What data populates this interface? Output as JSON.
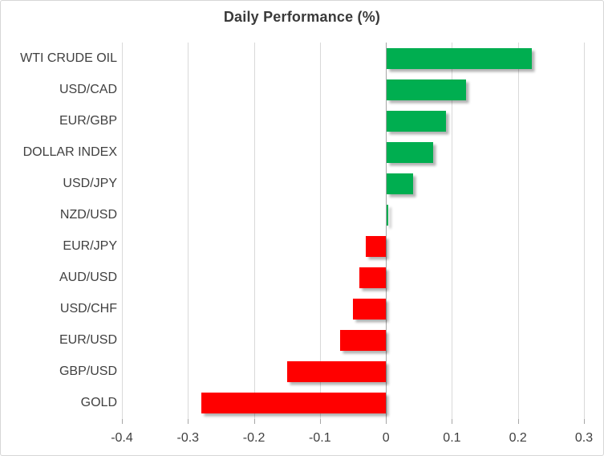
{
  "chart_data": {
    "type": "bar",
    "orientation": "horizontal",
    "title": "Daily Performance (%)",
    "categories": [
      "WTI CRUDE OIL",
      "USD/CAD",
      "EUR/GBP",
      "DOLLAR INDEX",
      "USD/JPY",
      "NZD/USD",
      "EUR/JPY",
      "AUD/USD",
      "USD/CHF",
      "EUR/USD",
      "GBP/USD",
      "GOLD"
    ],
    "values": [
      0.22,
      0.12,
      0.09,
      0.07,
      0.04,
      0.002,
      -0.03,
      -0.04,
      -0.05,
      -0.07,
      -0.15,
      -0.28
    ],
    "xlabel": "",
    "ylabel": "",
    "xlim": [
      -0.4,
      0.3
    ],
    "xticks": [
      -0.4,
      -0.3,
      -0.2,
      -0.1,
      0,
      0.1,
      0.2,
      0.3
    ],
    "xtick_labels": [
      "-0.4",
      "-0.3",
      "-0.2",
      "-0.1",
      "0",
      "0.1",
      "0.2",
      "0.3"
    ],
    "grid": "vertical",
    "legend": "none",
    "colors": {
      "positive_bar": "#00AE50",
      "negative_bar": "#FF0000",
      "gridline": "#D9D9D9",
      "zero_axis": "#A6A6A6",
      "tick": "#A6A6A6",
      "title_text": "#3A3A3A",
      "label_text": "#404040",
      "border": "#D6D6D6"
    }
  }
}
